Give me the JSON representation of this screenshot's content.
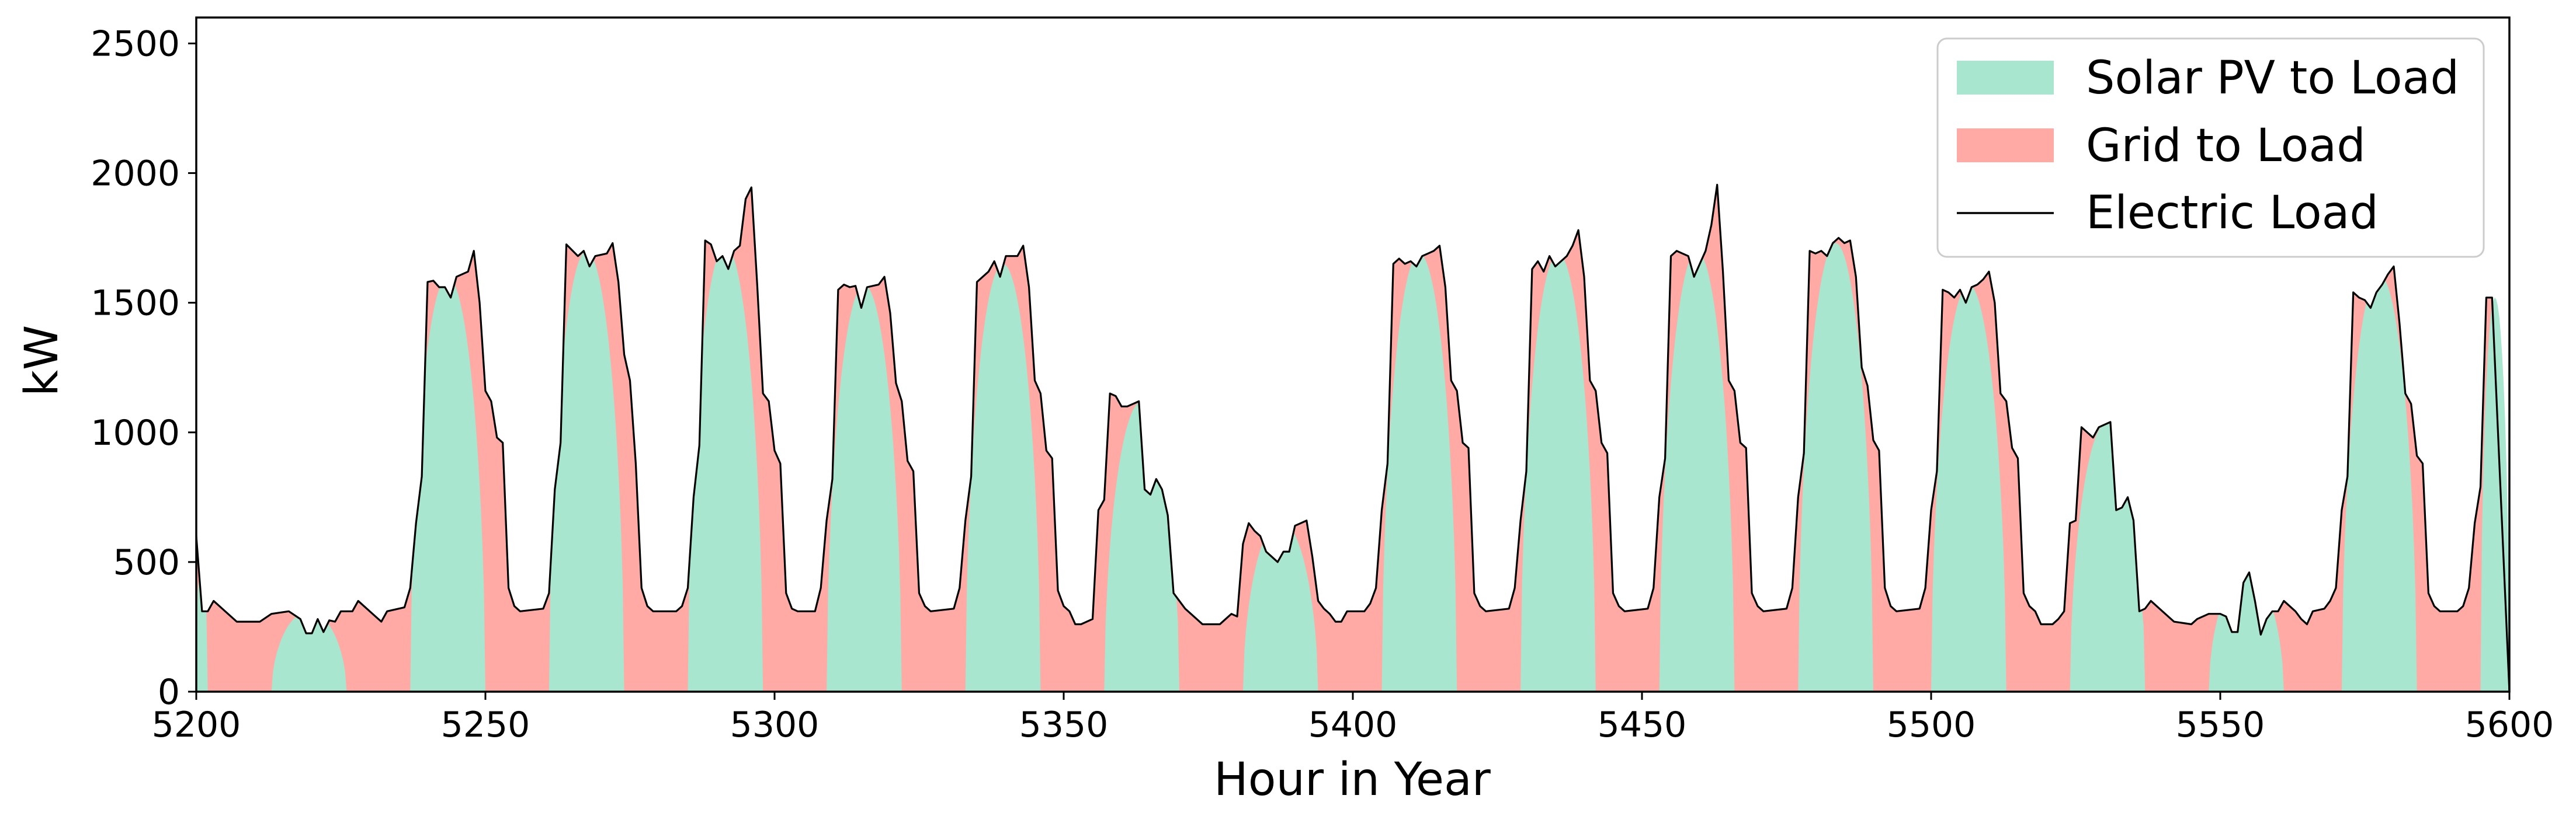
{
  "chart_data": {
    "type": "area",
    "xlabel": "Hour in Year",
    "ylabel": "kW",
    "xlim": [
      5200,
      5600
    ],
    "ylim": [
      0,
      2600
    ],
    "xticks": [
      5200,
      5250,
      5300,
      5350,
      5400,
      5450,
      5500,
      5550,
      5600
    ],
    "yticks": [
      0,
      500,
      1000,
      1500,
      2000,
      2500
    ],
    "grid": false,
    "legend_position": "top-right",
    "series": [
      {
        "name": "Solar PV to Load",
        "role": "stacked-area-bottom",
        "color": "#a8e6cf"
      },
      {
        "name": "Grid to Load",
        "role": "stacked-area-top",
        "color": "#ffaaa5"
      },
      {
        "name": "Electric Load",
        "role": "line",
        "color": "#000000"
      }
    ],
    "electric_load": [
      [
        5200,
        600
      ],
      [
        5201,
        310
      ],
      [
        5202,
        310
      ],
      [
        5203,
        350
      ],
      [
        5205,
        310
      ],
      [
        5207,
        270
      ],
      [
        5211,
        270
      ],
      [
        5213,
        300
      ],
      [
        5216,
        310
      ],
      [
        5218,
        280
      ],
      [
        5219,
        225
      ],
      [
        5220,
        225
      ],
      [
        5221,
        280
      ],
      [
        5222,
        230
      ],
      [
        5223,
        275
      ],
      [
        5224,
        270
      ],
      [
        5225,
        310
      ],
      [
        5227,
        310
      ],
      [
        5228,
        350
      ],
      [
        5230,
        310
      ],
      [
        5232,
        270
      ],
      [
        5233,
        310
      ],
      [
        5236,
        325
      ],
      [
        5237,
        400
      ],
      [
        5238,
        650
      ],
      [
        5239,
        830
      ],
      [
        5240,
        1580
      ],
      [
        5241,
        1585
      ],
      [
        5242,
        1560
      ],
      [
        5243,
        1560
      ],
      [
        5244,
        1520
      ],
      [
        5245,
        1600
      ],
      [
        5247,
        1620
      ],
      [
        5248,
        1700
      ],
      [
        5249,
        1500
      ],
      [
        5250,
        1160
      ],
      [
        5251,
        1120
      ],
      [
        5252,
        980
      ],
      [
        5253,
        960
      ],
      [
        5254,
        400
      ],
      [
        5255,
        330
      ],
      [
        5256,
        310
      ],
      [
        5260,
        320
      ],
      [
        5261,
        380
      ],
      [
        5262,
        780
      ],
      [
        5263,
        960
      ],
      [
        5264,
        1725
      ],
      [
        5266,
        1680
      ],
      [
        5267,
        1700
      ],
      [
        5268,
        1640
      ],
      [
        5269,
        1680
      ],
      [
        5271,
        1690
      ],
      [
        5272,
        1730
      ],
      [
        5273,
        1580
      ],
      [
        5274,
        1300
      ],
      [
        5275,
        1200
      ],
      [
        5276,
        880
      ],
      [
        5277,
        400
      ],
      [
        5278,
        330
      ],
      [
        5279,
        310
      ],
      [
        5283,
        310
      ],
      [
        5284,
        330
      ],
      [
        5285,
        400
      ],
      [
        5286,
        750
      ],
      [
        5287,
        950
      ],
      [
        5288,
        1740
      ],
      [
        5289,
        1725
      ],
      [
        5290,
        1660
      ],
      [
        5291,
        1680
      ],
      [
        5292,
        1630
      ],
      [
        5293,
        1700
      ],
      [
        5294,
        1720
      ],
      [
        5295,
        1900
      ],
      [
        5296,
        1945
      ],
      [
        5297,
        1570
      ],
      [
        5298,
        1150
      ],
      [
        5299,
        1120
      ],
      [
        5300,
        930
      ],
      [
        5301,
        880
      ],
      [
        5302,
        380
      ],
      [
        5303,
        320
      ],
      [
        5304,
        310
      ],
      [
        5307,
        310
      ],
      [
        5308,
        400
      ],
      [
        5309,
        660
      ],
      [
        5310,
        820
      ],
      [
        5311,
        1550
      ],
      [
        5312,
        1570
      ],
      [
        5313,
        1560
      ],
      [
        5314,
        1565
      ],
      [
        5315,
        1480
      ],
      [
        5316,
        1560
      ],
      [
        5318,
        1570
      ],
      [
        5319,
        1600
      ],
      [
        5320,
        1460
      ],
      [
        5321,
        1190
      ],
      [
        5322,
        1120
      ],
      [
        5323,
        890
      ],
      [
        5324,
        850
      ],
      [
        5325,
        380
      ],
      [
        5326,
        330
      ],
      [
        5327,
        310
      ],
      [
        5331,
        320
      ],
      [
        5332,
        400
      ],
      [
        5333,
        660
      ],
      [
        5334,
        830
      ],
      [
        5335,
        1580
      ],
      [
        5336,
        1600
      ],
      [
        5337,
        1620
      ],
      [
        5338,
        1660
      ],
      [
        5339,
        1600
      ],
      [
        5340,
        1680
      ],
      [
        5342,
        1680
      ],
      [
        5343,
        1720
      ],
      [
        5344,
        1560
      ],
      [
        5345,
        1200
      ],
      [
        5346,
        1150
      ],
      [
        5347,
        930
      ],
      [
        5348,
        900
      ],
      [
        5349,
        390
      ],
      [
        5350,
        330
      ],
      [
        5351,
        310
      ],
      [
        5352,
        260
      ],
      [
        5353,
        260
      ],
      [
        5355,
        280
      ],
      [
        5356,
        700
      ],
      [
        5357,
        740
      ],
      [
        5358,
        1150
      ],
      [
        5359,
        1140
      ],
      [
        5360,
        1100
      ],
      [
        5361,
        1100
      ],
      [
        5362,
        1110
      ],
      [
        5363,
        1120
      ],
      [
        5364,
        780
      ],
      [
        5365,
        760
      ],
      [
        5366,
        820
      ],
      [
        5367,
        780
      ],
      [
        5368,
        680
      ],
      [
        5369,
        380
      ],
      [
        5370,
        350
      ],
      [
        5371,
        320
      ],
      [
        5373,
        280
      ],
      [
        5374,
        260
      ],
      [
        5377,
        260
      ],
      [
        5379,
        300
      ],
      [
        5380,
        290
      ],
      [
        5381,
        570
      ],
      [
        5382,
        650
      ],
      [
        5383,
        620
      ],
      [
        5384,
        600
      ],
      [
        5385,
        540
      ],
      [
        5386,
        520
      ],
      [
        5387,
        500
      ],
      [
        5388,
        540
      ],
      [
        5389,
        540
      ],
      [
        5390,
        640
      ],
      [
        5391,
        650
      ],
      [
        5392,
        660
      ],
      [
        5393,
        520
      ],
      [
        5394,
        350
      ],
      [
        5395,
        320
      ],
      [
        5396,
        300
      ],
      [
        5397,
        270
      ],
      [
        5398,
        270
      ],
      [
        5399,
        310
      ],
      [
        5400,
        310
      ],
      [
        5402,
        310
      ],
      [
        5403,
        340
      ],
      [
        5404,
        400
      ],
      [
        5405,
        700
      ],
      [
        5406,
        880
      ],
      [
        5407,
        1650
      ],
      [
        5408,
        1670
      ],
      [
        5409,
        1650
      ],
      [
        5410,
        1660
      ],
      [
        5411,
        1640
      ],
      [
        5412,
        1680
      ],
      [
        5413,
        1690
      ],
      [
        5414,
        1700
      ],
      [
        5415,
        1720
      ],
      [
        5416,
        1560
      ],
      [
        5417,
        1200
      ],
      [
        5418,
        1160
      ],
      [
        5419,
        960
      ],
      [
        5420,
        940
      ],
      [
        5421,
        380
      ],
      [
        5422,
        330
      ],
      [
        5423,
        310
      ],
      [
        5427,
        320
      ],
      [
        5428,
        400
      ],
      [
        5429,
        660
      ],
      [
        5430,
        850
      ],
      [
        5431,
        1630
      ],
      [
        5432,
        1660
      ],
      [
        5433,
        1620
      ],
      [
        5434,
        1680
      ],
      [
        5435,
        1640
      ],
      [
        5437,
        1680
      ],
      [
        5438,
        1720
      ],
      [
        5439,
        1780
      ],
      [
        5440,
        1600
      ],
      [
        5441,
        1200
      ],
      [
        5442,
        1160
      ],
      [
        5443,
        960
      ],
      [
        5444,
        920
      ],
      [
        5445,
        380
      ],
      [
        5446,
        330
      ],
      [
        5447,
        310
      ],
      [
        5451,
        320
      ],
      [
        5452,
        400
      ],
      [
        5453,
        750
      ],
      [
        5454,
        900
      ],
      [
        5455,
        1680
      ],
      [
        5456,
        1700
      ],
      [
        5457,
        1690
      ],
      [
        5458,
        1680
      ],
      [
        5459,
        1600
      ],
      [
        5460,
        1650
      ],
      [
        5461,
        1700
      ],
      [
        5462,
        1800
      ],
      [
        5463,
        1955
      ],
      [
        5464,
        1620
      ],
      [
        5465,
        1200
      ],
      [
        5466,
        1160
      ],
      [
        5467,
        960
      ],
      [
        5468,
        940
      ],
      [
        5469,
        380
      ],
      [
        5470,
        330
      ],
      [
        5471,
        310
      ],
      [
        5475,
        320
      ],
      [
        5476,
        400
      ],
      [
        5477,
        750
      ],
      [
        5478,
        920
      ],
      [
        5479,
        1700
      ],
      [
        5480,
        1690
      ],
      [
        5481,
        1700
      ],
      [
        5482,
        1680
      ],
      [
        5483,
        1730
      ],
      [
        5484,
        1750
      ],
      [
        5485,
        1730
      ],
      [
        5486,
        1740
      ],
      [
        5487,
        1600
      ],
      [
        5488,
        1250
      ],
      [
        5489,
        1180
      ],
      [
        5490,
        970
      ],
      [
        5491,
        930
      ],
      [
        5492,
        400
      ],
      [
        5493,
        330
      ],
      [
        5494,
        310
      ],
      [
        5498,
        320
      ],
      [
        5499,
        400
      ],
      [
        5500,
        700
      ],
      [
        5501,
        850
      ],
      [
        5502,
        1550
      ],
      [
        5503,
        1540
      ],
      [
        5504,
        1520
      ],
      [
        5505,
        1550
      ],
      [
        5506,
        1500
      ],
      [
        5507,
        1560
      ],
      [
        5508,
        1570
      ],
      [
        5509,
        1590
      ],
      [
        5510,
        1620
      ],
      [
        5511,
        1500
      ],
      [
        5512,
        1150
      ],
      [
        5513,
        1120
      ],
      [
        5514,
        940
      ],
      [
        5515,
        900
      ],
      [
        5516,
        380
      ],
      [
        5517,
        330
      ],
      [
        5518,
        310
      ],
      [
        5519,
        260
      ],
      [
        5521,
        260
      ],
      [
        5522,
        280
      ],
      [
        5523,
        310
      ],
      [
        5524,
        650
      ],
      [
        5525,
        660
      ],
      [
        5526,
        1020
      ],
      [
        5527,
        1000
      ],
      [
        5528,
        980
      ],
      [
        5529,
        1020
      ],
      [
        5531,
        1040
      ],
      [
        5532,
        700
      ],
      [
        5533,
        710
      ],
      [
        5534,
        750
      ],
      [
        5535,
        660
      ],
      [
        5536,
        310
      ],
      [
        5537,
        320
      ],
      [
        5538,
        350
      ],
      [
        5540,
        310
      ],
      [
        5542,
        270
      ],
      [
        5545,
        260
      ],
      [
        5546,
        280
      ],
      [
        5548,
        300
      ],
      [
        5550,
        300
      ],
      [
        5551,
        290
      ],
      [
        5552,
        230
      ],
      [
        5553,
        230
      ],
      [
        5554,
        420
      ],
      [
        5555,
        460
      ],
      [
        5556,
        350
      ],
      [
        5557,
        220
      ],
      [
        5558,
        280
      ],
      [
        5559,
        310
      ],
      [
        5560,
        310
      ],
      [
        5561,
        350
      ],
      [
        5563,
        310
      ],
      [
        5564,
        280
      ],
      [
        5565,
        260
      ],
      [
        5566,
        310
      ],
      [
        5568,
        320
      ],
      [
        5569,
        350
      ],
      [
        5570,
        400
      ],
      [
        5571,
        700
      ],
      [
        5572,
        830
      ],
      [
        5573,
        1540
      ],
      [
        5574,
        1520
      ],
      [
        5575,
        1510
      ],
      [
        5576,
        1480
      ],
      [
        5577,
        1540
      ],
      [
        5578,
        1570
      ],
      [
        5579,
        1610
      ],
      [
        5580,
        1640
      ],
      [
        5581,
        1420
      ],
      [
        5582,
        1150
      ],
      [
        5583,
        1110
      ],
      [
        5584,
        910
      ],
      [
        5585,
        880
      ],
      [
        5586,
        380
      ],
      [
        5587,
        330
      ],
      [
        5588,
        310
      ],
      [
        5591,
        310
      ],
      [
        5592,
        330
      ],
      [
        5593,
        400
      ],
      [
        5594,
        650
      ],
      [
        5595,
        790
      ],
      [
        5596,
        1520
      ],
      [
        5597,
        1520
      ]
    ],
    "solar_pv_to_load_days": [
      {
        "start": 5200,
        "end": 5202,
        "peak": 600
      },
      {
        "start": 5213,
        "end": 5226,
        "peak": 310
      },
      {
        "start": 5237,
        "end": 5250,
        "peak": 1600
      },
      {
        "start": 5261,
        "end": 5274,
        "peak": 1700
      },
      {
        "start": 5285,
        "end": 5298,
        "peak": 1720
      },
      {
        "start": 5309,
        "end": 5322,
        "peak": 1570
      },
      {
        "start": 5333,
        "end": 5346,
        "peak": 1650
      },
      {
        "start": 5357,
        "end": 5370,
        "peak": 1120
      },
      {
        "start": 5381,
        "end": 5394,
        "peak": 660
      },
      {
        "start": 5405,
        "end": 5418,
        "peak": 1690
      },
      {
        "start": 5429,
        "end": 5442,
        "peak": 1690
      },
      {
        "start": 5453,
        "end": 5466,
        "peak": 1700
      },
      {
        "start": 5477,
        "end": 5490,
        "peak": 1730
      },
      {
        "start": 5500,
        "end": 5513,
        "peak": 1570
      },
      {
        "start": 5524,
        "end": 5537,
        "peak": 1040
      },
      {
        "start": 5548,
        "end": 5561,
        "peak": 460
      },
      {
        "start": 5571,
        "end": 5584,
        "peak": 1610
      },
      {
        "start": 5595,
        "end": 5600,
        "peak": 1520
      }
    ]
  }
}
